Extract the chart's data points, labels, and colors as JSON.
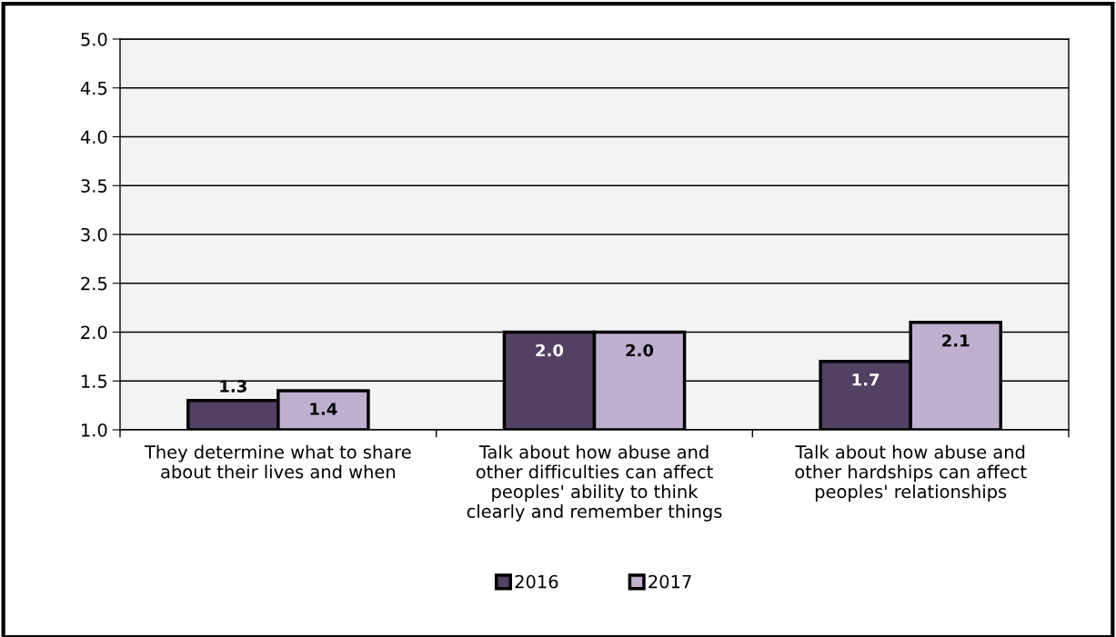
{
  "chart_data": {
    "type": "bar",
    "categories": [
      "They determine what to share about their lives and when",
      "Talk about how abuse and other difficulties can affect peoples' ability to think clearly and remember things",
      "Talk about how abuse and other hardships can affect peoples' relationships"
    ],
    "series": [
      {
        "name": "2016",
        "color": "#524163",
        "values": [
          1.3,
          2.0,
          1.7
        ],
        "value_labels": [
          "1.3",
          "2.0",
          "1.7"
        ]
      },
      {
        "name": "2017",
        "color": "#c0b0d0",
        "values": [
          1.4,
          2.0,
          2.1
        ],
        "value_labels": [
          "1.4",
          "2.0",
          "2.1"
        ]
      }
    ],
    "ylim": [
      1.0,
      5.0
    ],
    "yticks": [
      {
        "value": 1.0,
        "label": "1.0"
      },
      {
        "value": 1.5,
        "label": "1.5"
      },
      {
        "value": 2.0,
        "label": "2.0"
      },
      {
        "value": 2.5,
        "label": "2.5"
      },
      {
        "value": 3.0,
        "label": "3.0"
      },
      {
        "value": 3.5,
        "label": "3.5"
      },
      {
        "value": 4.0,
        "label": "4.0"
      },
      {
        "value": 4.5,
        "label": "4.5"
      },
      {
        "value": 5.0,
        "label": "5.0"
      }
    ],
    "grid": "y",
    "legend": "bottom"
  }
}
